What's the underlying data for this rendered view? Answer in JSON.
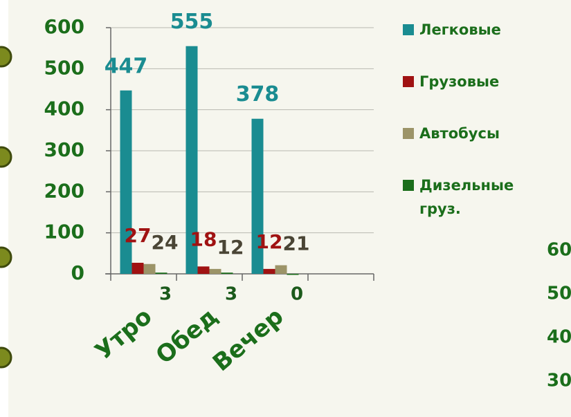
{
  "chart_data": {
    "type": "bar",
    "categories": [
      "Утро",
      "Обед",
      "Вечер",
      null
    ],
    "series": [
      {
        "name": "Легковые",
        "color": "#1a8c91",
        "values": [
          447,
          555,
          378,
          null
        ]
      },
      {
        "name": "Грузовые",
        "color": "#a01212",
        "values": [
          27,
          18,
          12,
          null
        ]
      },
      {
        "name": "Автобусы",
        "color": "#9c9468",
        "values": [
          24,
          12,
          21,
          null
        ]
      },
      {
        "name": "Дизельные груз.",
        "color": "#1b6e1b",
        "values": [
          3,
          3,
          0,
          null
        ]
      }
    ],
    "ylim": [
      0,
      600
    ],
    "yticks": [
      0,
      100,
      200,
      300,
      400,
      500,
      600
    ],
    "grid": true,
    "legend": "right"
  },
  "cropped_axis_labels": [
    "60",
    "50",
    "40",
    "30"
  ]
}
